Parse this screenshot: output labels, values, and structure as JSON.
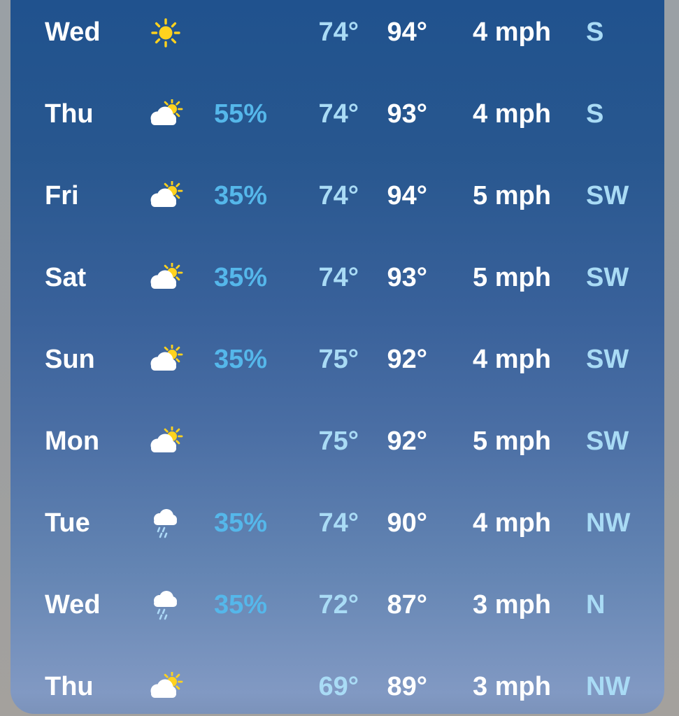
{
  "app": {
    "view": "daily-forecast-list"
  },
  "colors": {
    "card_top": "#20528e",
    "card_bottom": "#8199c3",
    "outer_background": "#9d9fa0",
    "day_text": "#ffffff",
    "precip_text": "#55b7ea",
    "low_temp_text": "#a9dbf5",
    "high_temp_text": "#ffffff",
    "wind_text": "#ffffff",
    "direction_text": "#a9dbf5",
    "sun_icon": "#ffd21e",
    "cloud_icon": "#ffffff",
    "rain_drops": "#add9f7"
  },
  "forecast": {
    "rows": [
      {
        "day": "Wed",
        "icon": "sun",
        "precip": "",
        "low": "74°",
        "high": "94°",
        "wind": "4 mph",
        "dir": "S"
      },
      {
        "day": "Thu",
        "icon": "cloud-sun",
        "precip": "55%",
        "low": "74°",
        "high": "93°",
        "wind": "4 mph",
        "dir": "S"
      },
      {
        "day": "Fri",
        "icon": "cloud-sun",
        "precip": "35%",
        "low": "74°",
        "high": "94°",
        "wind": "5 mph",
        "dir": "SW"
      },
      {
        "day": "Sat",
        "icon": "cloud-sun",
        "precip": "35%",
        "low": "74°",
        "high": "93°",
        "wind": "5 mph",
        "dir": "SW"
      },
      {
        "day": "Sun",
        "icon": "cloud-sun",
        "precip": "35%",
        "low": "75°",
        "high": "92°",
        "wind": "4 mph",
        "dir": "SW"
      },
      {
        "day": "Mon",
        "icon": "cloud-sun",
        "precip": "",
        "low": "75°",
        "high": "92°",
        "wind": "5 mph",
        "dir": "SW"
      },
      {
        "day": "Tue",
        "icon": "cloud-rain",
        "precip": "35%",
        "low": "74°",
        "high": "90°",
        "wind": "4 mph",
        "dir": "NW"
      },
      {
        "day": "Wed",
        "icon": "cloud-rain",
        "precip": "35%",
        "low": "72°",
        "high": "87°",
        "wind": "3 mph",
        "dir": "N"
      },
      {
        "day": "Thu",
        "icon": "cloud-sun",
        "precip": "",
        "low": "69°",
        "high": "89°",
        "wind": "3 mph",
        "dir": "NW"
      }
    ]
  }
}
